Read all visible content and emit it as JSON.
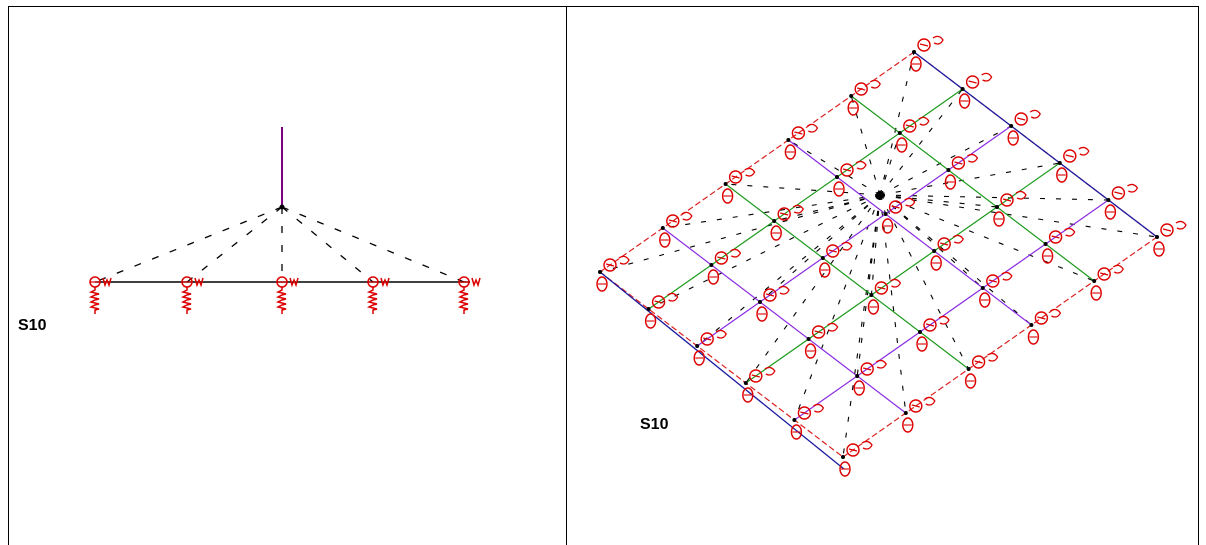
{
  "panels": [
    {
      "id": "left",
      "label": "S10",
      "view": "elevation"
    },
    {
      "id": "right",
      "label": "S10",
      "view": "isometric"
    }
  ],
  "colors": {
    "support": "#dd0000",
    "member": "#000000",
    "load": "#800080",
    "grid_edge_blue": "#1a1aa0",
    "grid_purple": "#8a2be2",
    "grid_green": "#1a9a1a",
    "grid_red": "#dd2020",
    "cable": "#000000"
  },
  "icons": [
    "spring-support-icon",
    "hinge-support-icon"
  ]
}
